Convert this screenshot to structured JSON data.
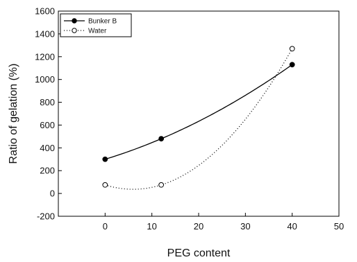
{
  "chart_data": {
    "type": "line",
    "title": "",
    "xlabel": "PEG content",
    "ylabel": "Ratio of gelation (%)",
    "xlim": [
      -10,
      50
    ],
    "ylim": [
      -200,
      1600
    ],
    "x_ticks": [
      0,
      10,
      20,
      30,
      40,
      50
    ],
    "y_ticks": [
      -200,
      0,
      200,
      400,
      600,
      800,
      1000,
      1200,
      1400,
      1600
    ],
    "x_tick_labels": [
      "0",
      "10",
      "20",
      "30",
      "40",
      "50"
    ],
    "y_tick_labels": [
      "-200",
      "0",
      "200",
      "400",
      "600",
      "800",
      "1000",
      "1200",
      "1400",
      "1600"
    ],
    "grid": false,
    "legend_position": "top-left",
    "series": [
      {
        "name": "Bunker B",
        "style": "solid",
        "marker": "filled-circle",
        "color": "#000000",
        "x": [
          0,
          12,
          40
        ],
        "y": [
          300,
          480,
          1130
        ]
      },
      {
        "name": "Water",
        "style": "dotted",
        "marker": "open-circle",
        "color": "#000000",
        "x": [
          0,
          12,
          40
        ],
        "y": [
          75,
          75,
          1270
        ]
      }
    ]
  }
}
